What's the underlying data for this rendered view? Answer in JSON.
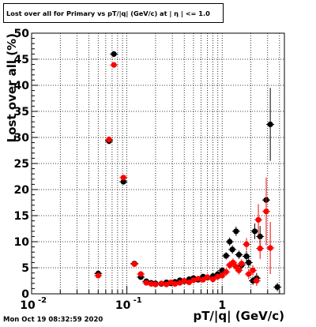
{
  "chart_data": {
    "type": "scatter",
    "title": "Lost over all for Primary vs pT/|q| (GeV/c) at | η | <= 1.0",
    "xlabel": "pT/|q| (GeV/c)",
    "ylabel": "Lost over all (%)",
    "x_scale": "log",
    "xlim": [
      0.01,
      4.5
    ],
    "ylim": [
      0,
      50
    ],
    "grid": true,
    "y_ticks": [
      0,
      5,
      10,
      15,
      20,
      25,
      30,
      35,
      40,
      45,
      50
    ],
    "y_tick_labels": [
      "0",
      "5",
      "10",
      "15",
      "20",
      "25",
      "30",
      "35",
      "40",
      "45",
      "50"
    ],
    "x_ticks": [
      0.01,
      0.1,
      1
    ],
    "x_tick_labels": [
      "10",
      "10",
      "1"
    ],
    "x_tick_exponents": [
      "-2",
      "-1",
      ""
    ],
    "series": [
      {
        "color": "#000000",
        "points": [
          {
            "x": 0.05,
            "y": 3.9,
            "ey": 0.4
          },
          {
            "x": 0.065,
            "y": 29.3,
            "ey": 0.6
          },
          {
            "x": 0.073,
            "y": 46.0,
            "ey": 0.5
          },
          {
            "x": 0.092,
            "y": 21.5,
            "ey": 0.5
          },
          {
            "x": 0.12,
            "y": 5.8,
            "ey": 0.3
          },
          {
            "x": 0.14,
            "y": 3.2,
            "ey": 0.3
          },
          {
            "x": 0.16,
            "y": 2.4,
            "ey": 0.3
          },
          {
            "x": 0.18,
            "y": 2.1,
            "ey": 0.3
          },
          {
            "x": 0.2,
            "y": 2.0,
            "ey": 0.3
          },
          {
            "x": 0.23,
            "y": 1.9,
            "ey": 0.3
          },
          {
            "x": 0.26,
            "y": 2.2,
            "ey": 0.3
          },
          {
            "x": 0.29,
            "y": 2.0,
            "ey": 0.3
          },
          {
            "x": 0.32,
            "y": 2.3,
            "ey": 0.3
          },
          {
            "x": 0.36,
            "y": 2.6,
            "ey": 0.3
          },
          {
            "x": 0.4,
            "y": 2.4,
            "ey": 0.3
          },
          {
            "x": 0.45,
            "y": 2.8,
            "ey": 0.4
          },
          {
            "x": 0.5,
            "y": 3.0,
            "ey": 0.4
          },
          {
            "x": 0.56,
            "y": 2.7,
            "ey": 0.4
          },
          {
            "x": 0.63,
            "y": 3.3,
            "ey": 0.4
          },
          {
            "x": 0.7,
            "y": 3.1,
            "ey": 0.4
          },
          {
            "x": 0.8,
            "y": 3.4,
            "ey": 0.5
          },
          {
            "x": 0.9,
            "y": 3.8,
            "ey": 0.5
          },
          {
            "x": 1.0,
            "y": 4.5,
            "ey": 0.6
          },
          {
            "x": 1.1,
            "y": 7.3,
            "ey": 0.7
          },
          {
            "x": 1.2,
            "y": 10.0,
            "ey": 0.8
          },
          {
            "x": 1.28,
            "y": 8.5,
            "ey": 0.8
          },
          {
            "x": 1.4,
            "y": 12.0,
            "ey": 0.9
          },
          {
            "x": 1.5,
            "y": 7.5,
            "ey": 0.8
          },
          {
            "x": 1.6,
            "y": 5.5,
            "ey": 0.8
          },
          {
            "x": 1.8,
            "y": 7.2,
            "ey": 1.0
          },
          {
            "x": 1.9,
            "y": 6.0,
            "ey": 1.0
          },
          {
            "x": 2.1,
            "y": 2.5,
            "ey": 0.8
          },
          {
            "x": 2.2,
            "y": 12.0,
            "ey": 1.5
          },
          {
            "x": 2.3,
            "y": 3.0,
            "ey": 1.0
          },
          {
            "x": 2.5,
            "y": 11.0,
            "ey": 2.0
          },
          {
            "x": 2.9,
            "y": 18.0,
            "ey": 4.0
          },
          {
            "x": 3.2,
            "y": 32.5,
            "ey": 7.0
          },
          {
            "x": 3.8,
            "y": 1.3,
            "ey": 0.8
          }
        ]
      },
      {
        "color": "#ff0000",
        "points": [
          {
            "x": 0.05,
            "y": 3.5,
            "ey": 0.4
          },
          {
            "x": 0.065,
            "y": 29.6,
            "ey": 0.6
          },
          {
            "x": 0.073,
            "y": 43.9,
            "ey": 0.5
          },
          {
            "x": 0.092,
            "y": 22.3,
            "ey": 0.5
          },
          {
            "x": 0.12,
            "y": 5.7,
            "ey": 0.3
          },
          {
            "x": 0.14,
            "y": 3.8,
            "ey": 0.3
          },
          {
            "x": 0.16,
            "y": 2.1,
            "ey": 0.3
          },
          {
            "x": 0.18,
            "y": 1.9,
            "ey": 0.3
          },
          {
            "x": 0.2,
            "y": 1.8,
            "ey": 0.3
          },
          {
            "x": 0.23,
            "y": 2.0,
            "ey": 0.3
          },
          {
            "x": 0.26,
            "y": 1.8,
            "ey": 0.3
          },
          {
            "x": 0.29,
            "y": 2.2,
            "ey": 0.3
          },
          {
            "x": 0.32,
            "y": 1.9,
            "ey": 0.3
          },
          {
            "x": 0.36,
            "y": 2.1,
            "ey": 0.3
          },
          {
            "x": 0.4,
            "y": 2.5,
            "ey": 0.3
          },
          {
            "x": 0.45,
            "y": 2.2,
            "ey": 0.4
          },
          {
            "x": 0.5,
            "y": 2.6,
            "ey": 0.4
          },
          {
            "x": 0.56,
            "y": 2.9,
            "ey": 0.4
          },
          {
            "x": 0.63,
            "y": 2.7,
            "ey": 0.4
          },
          {
            "x": 0.7,
            "y": 3.2,
            "ey": 0.4
          },
          {
            "x": 0.8,
            "y": 2.8,
            "ey": 0.5
          },
          {
            "x": 0.9,
            "y": 3.3,
            "ey": 0.5
          },
          {
            "x": 1.0,
            "y": 3.5,
            "ey": 0.6
          },
          {
            "x": 1.1,
            "y": 4.2,
            "ey": 0.7
          },
          {
            "x": 1.2,
            "y": 5.5,
            "ey": 0.8
          },
          {
            "x": 1.3,
            "y": 6.0,
            "ey": 0.8
          },
          {
            "x": 1.4,
            "y": 5.2,
            "ey": 0.9
          },
          {
            "x": 1.5,
            "y": 4.5,
            "ey": 0.8
          },
          {
            "x": 1.6,
            "y": 5.8,
            "ey": 0.8
          },
          {
            "x": 1.8,
            "y": 9.5,
            "ey": 1.2
          },
          {
            "x": 1.9,
            "y": 3.8,
            "ey": 1.0
          },
          {
            "x": 2.1,
            "y": 4.5,
            "ey": 1.0
          },
          {
            "x": 2.3,
            "y": 2.5,
            "ey": 1.0
          },
          {
            "x": 2.4,
            "y": 14.2,
            "ey": 3.0
          },
          {
            "x": 2.5,
            "y": 8.7,
            "ey": 2.0
          },
          {
            "x": 2.9,
            "y": 15.8,
            "ey": 6.5
          },
          {
            "x": 3.2,
            "y": 8.8,
            "ey": 5.0
          }
        ]
      }
    ]
  },
  "footer": {
    "timestamp": "Mon Oct 19 08:32:59 2020"
  }
}
